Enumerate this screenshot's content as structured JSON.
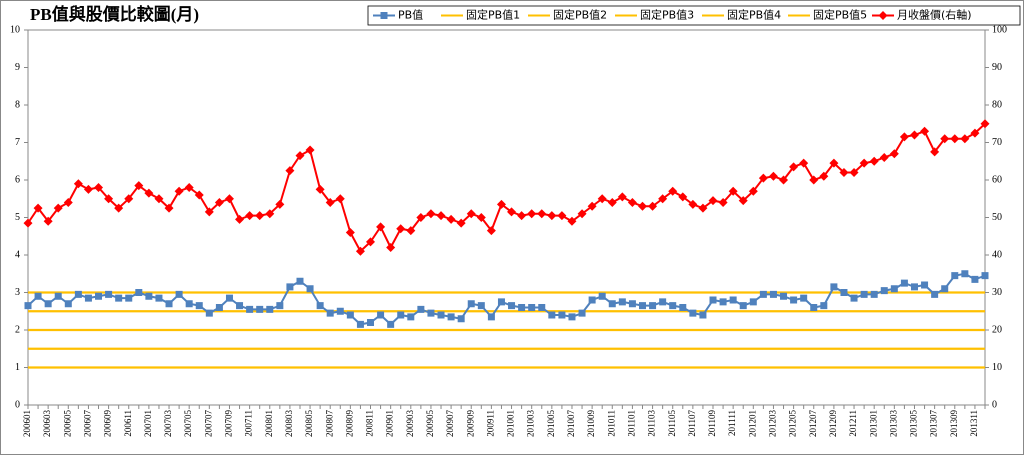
{
  "chart_data": {
    "type": "line",
    "title": "PB值與股價比較圖(月)",
    "categories": [
      "200601",
      null,
      "200603",
      null,
      "200605",
      null,
      "200607",
      null,
      "200609",
      null,
      "200611",
      null,
      "200701",
      null,
      "200703",
      null,
      "200705",
      null,
      "200707",
      null,
      "200709",
      null,
      "200711",
      null,
      "200801",
      null,
      "200803",
      null,
      "200805",
      null,
      "200807",
      null,
      "200809",
      null,
      "200811",
      null,
      "200901",
      null,
      "200903",
      null,
      "200905",
      null,
      "200907",
      null,
      "200909",
      null,
      "200911",
      null,
      "201001",
      null,
      "201003",
      null,
      "201005",
      null,
      "201007",
      null,
      "201009",
      null,
      "201011",
      null,
      "201101",
      null,
      "201103",
      null,
      "201105",
      null,
      "201107",
      null,
      "201109",
      null,
      "201111",
      null,
      "201201",
      null,
      "201203",
      null,
      "201205",
      null,
      "201207",
      null,
      "201209",
      null,
      "201211",
      null,
      "201301",
      null,
      "201303",
      null,
      "201305",
      null,
      "201307",
      null,
      "201309",
      null,
      "201311",
      null
    ],
    "series": [
      {
        "name": "PB值",
        "color": "#4f81bd",
        "marker": "square",
        "values": [
          2.65,
          2.9,
          2.7,
          2.9,
          2.7,
          2.95,
          2.85,
          2.9,
          2.95,
          2.85,
          2.85,
          3.0,
          2.9,
          2.85,
          2.7,
          2.95,
          2.7,
          2.65,
          2.45,
          2.6,
          2.85,
          2.65,
          2.55,
          2.55,
          2.55,
          2.65,
          3.15,
          3.3,
          3.1,
          2.65,
          2.45,
          2.5,
          2.4,
          2.15,
          2.2,
          2.4,
          2.15,
          2.4,
          2.35,
          2.55,
          2.45,
          2.4,
          2.35,
          2.3,
          2.7,
          2.65,
          2.35,
          2.75,
          2.65,
          2.6,
          2.6,
          2.6,
          2.4,
          2.4,
          2.35,
          2.45,
          2.8,
          2.9,
          2.7,
          2.75,
          2.7,
          2.65,
          2.65,
          2.75,
          2.65,
          2.6,
          2.45,
          2.4,
          2.8,
          2.75,
          2.8,
          2.65,
          2.75,
          2.95,
          2.95,
          2.9,
          2.8,
          2.85,
          2.6,
          2.65,
          3.15,
          3.0,
          2.85,
          2.95,
          2.95,
          3.05,
          3.1,
          3.25,
          3.15,
          3.2,
          2.95,
          3.1,
          3.45,
          3.5,
          3.35,
          3.45
        ]
      },
      {
        "name": "固定PB值1",
        "color": "#ffc000",
        "values": [
          1,
          1,
          1,
          1,
          1,
          1,
          1,
          1,
          1,
          1,
          1,
          1,
          1,
          1,
          1,
          1,
          1,
          1,
          1,
          1,
          1,
          1,
          1,
          1,
          1,
          1,
          1,
          1,
          1,
          1,
          1,
          1,
          1,
          1,
          1,
          1,
          1,
          1,
          1,
          1,
          1,
          1,
          1,
          1,
          1,
          1,
          1,
          1,
          1,
          1,
          1,
          1,
          1,
          1,
          1,
          1,
          1,
          1,
          1,
          1,
          1,
          1,
          1,
          1,
          1,
          1,
          1,
          1,
          1,
          1,
          1,
          1,
          1,
          1,
          1,
          1,
          1,
          1,
          1,
          1,
          1,
          1,
          1,
          1,
          1,
          1,
          1,
          1,
          1,
          1,
          1,
          1,
          1,
          1,
          1,
          1
        ]
      },
      {
        "name": "固定PB值2",
        "color": "#ffc000",
        "values": [
          1.5,
          1.5,
          1.5,
          1.5,
          1.5,
          1.5,
          1.5,
          1.5,
          1.5,
          1.5,
          1.5,
          1.5,
          1.5,
          1.5,
          1.5,
          1.5,
          1.5,
          1.5,
          1.5,
          1.5,
          1.5,
          1.5,
          1.5,
          1.5,
          1.5,
          1.5,
          1.5,
          1.5,
          1.5,
          1.5,
          1.5,
          1.5,
          1.5,
          1.5,
          1.5,
          1.5,
          1.5,
          1.5,
          1.5,
          1.5,
          1.5,
          1.5,
          1.5,
          1.5,
          1.5,
          1.5,
          1.5,
          1.5,
          1.5,
          1.5,
          1.5,
          1.5,
          1.5,
          1.5,
          1.5,
          1.5,
          1.5,
          1.5,
          1.5,
          1.5,
          1.5,
          1.5,
          1.5,
          1.5,
          1.5,
          1.5,
          1.5,
          1.5,
          1.5,
          1.5,
          1.5,
          1.5,
          1.5,
          1.5,
          1.5,
          1.5,
          1.5,
          1.5,
          1.5,
          1.5,
          1.5,
          1.5,
          1.5,
          1.5,
          1.5,
          1.5,
          1.5,
          1.5,
          1.5,
          1.5,
          1.5,
          1.5,
          1.5,
          1.5,
          1.5,
          1.5
        ]
      },
      {
        "name": "固定PB值3",
        "color": "#ffc000",
        "values": [
          2,
          2,
          2,
          2,
          2,
          2,
          2,
          2,
          2,
          2,
          2,
          2,
          2,
          2,
          2,
          2,
          2,
          2,
          2,
          2,
          2,
          2,
          2,
          2,
          2,
          2,
          2,
          2,
          2,
          2,
          2,
          2,
          2,
          2,
          2,
          2,
          2,
          2,
          2,
          2,
          2,
          2,
          2,
          2,
          2,
          2,
          2,
          2,
          2,
          2,
          2,
          2,
          2,
          2,
          2,
          2,
          2,
          2,
          2,
          2,
          2,
          2,
          2,
          2,
          2,
          2,
          2,
          2,
          2,
          2,
          2,
          2,
          2,
          2,
          2,
          2,
          2,
          2,
          2,
          2,
          2,
          2,
          2,
          2,
          2,
          2,
          2,
          2,
          2,
          2,
          2,
          2,
          2,
          2,
          2,
          2
        ]
      },
      {
        "name": "固定PB值4",
        "color": "#ffc000",
        "values": [
          2.5,
          2.5,
          2.5,
          2.5,
          2.5,
          2.5,
          2.5,
          2.5,
          2.5,
          2.5,
          2.5,
          2.5,
          2.5,
          2.5,
          2.5,
          2.5,
          2.5,
          2.5,
          2.5,
          2.5,
          2.5,
          2.5,
          2.5,
          2.5,
          2.5,
          2.5,
          2.5,
          2.5,
          2.5,
          2.5,
          2.5,
          2.5,
          2.5,
          2.5,
          2.5,
          2.5,
          2.5,
          2.5,
          2.5,
          2.5,
          2.5,
          2.5,
          2.5,
          2.5,
          2.5,
          2.5,
          2.5,
          2.5,
          2.5,
          2.5,
          2.5,
          2.5,
          2.5,
          2.5,
          2.5,
          2.5,
          2.5,
          2.5,
          2.5,
          2.5,
          2.5,
          2.5,
          2.5,
          2.5,
          2.5,
          2.5,
          2.5,
          2.5,
          2.5,
          2.5,
          2.5,
          2.5,
          2.5,
          2.5,
          2.5,
          2.5,
          2.5,
          2.5,
          2.5,
          2.5,
          2.5,
          2.5,
          2.5,
          2.5,
          2.5,
          2.5,
          2.5,
          2.5,
          2.5,
          2.5,
          2.5,
          2.5,
          2.5,
          2.5,
          2.5,
          2.5
        ]
      },
      {
        "name": "固定PB值5",
        "color": "#ffc000",
        "values": [
          3,
          3,
          3,
          3,
          3,
          3,
          3,
          3,
          3,
          3,
          3,
          3,
          3,
          3,
          3,
          3,
          3,
          3,
          3,
          3,
          3,
          3,
          3,
          3,
          3,
          3,
          3,
          3,
          3,
          3,
          3,
          3,
          3,
          3,
          3,
          3,
          3,
          3,
          3,
          3,
          3,
          3,
          3,
          3,
          3,
          3,
          3,
          3,
          3,
          3,
          3,
          3,
          3,
          3,
          3,
          3,
          3,
          3,
          3,
          3,
          3,
          3,
          3,
          3,
          3,
          3,
          3,
          3,
          3,
          3,
          3,
          3,
          3,
          3,
          3,
          3,
          3,
          3,
          3,
          3,
          3,
          3,
          3,
          3,
          3,
          3,
          3,
          3,
          3,
          3,
          3,
          3,
          3,
          3,
          3,
          3
        ]
      },
      {
        "name": "月收盤價(右軸)",
        "color": "#ff0000",
        "marker": "diamond",
        "axis": "y2",
        "values": [
          48.5,
          52.5,
          49,
          52.5,
          54,
          59,
          57.5,
          58,
          55,
          52.5,
          55,
          58.5,
          56.5,
          55,
          52.5,
          57,
          58,
          56,
          51.5,
          54,
          55,
          49.5,
          50.5,
          50.5,
          51,
          53.5,
          62.5,
          66.5,
          68,
          57.5,
          54,
          55,
          46,
          41,
          43.5,
          47.5,
          42,
          47,
          46.5,
          50,
          51,
          50.5,
          49.5,
          48.5,
          51,
          50,
          46.5,
          53.5,
          51.5,
          50.5,
          51,
          51,
          50.5,
          50.5,
          49,
          51,
          53,
          55,
          54,
          55.5,
          54,
          53,
          53,
          55,
          57,
          55.5,
          53.5,
          52.5,
          54.5,
          54,
          57,
          54.5,
          57,
          60.5,
          61,
          60,
          63.5,
          64.5,
          60,
          61,
          64.5,
          62,
          62,
          64.5,
          65,
          66,
          67,
          71.5,
          72,
          73,
          67.5,
          71,
          71,
          71,
          72.5,
          75
        ]
      }
    ],
    "ylim": [
      0,
      10
    ],
    "yticks": [
      0,
      1,
      2,
      3,
      4,
      5,
      6,
      7,
      8,
      9,
      10
    ],
    "y2lim": [
      0,
      100
    ],
    "y2ticks": [
      0,
      10,
      20,
      30,
      40,
      50,
      60,
      70,
      80,
      90,
      100
    ],
    "legend": "top-right"
  }
}
